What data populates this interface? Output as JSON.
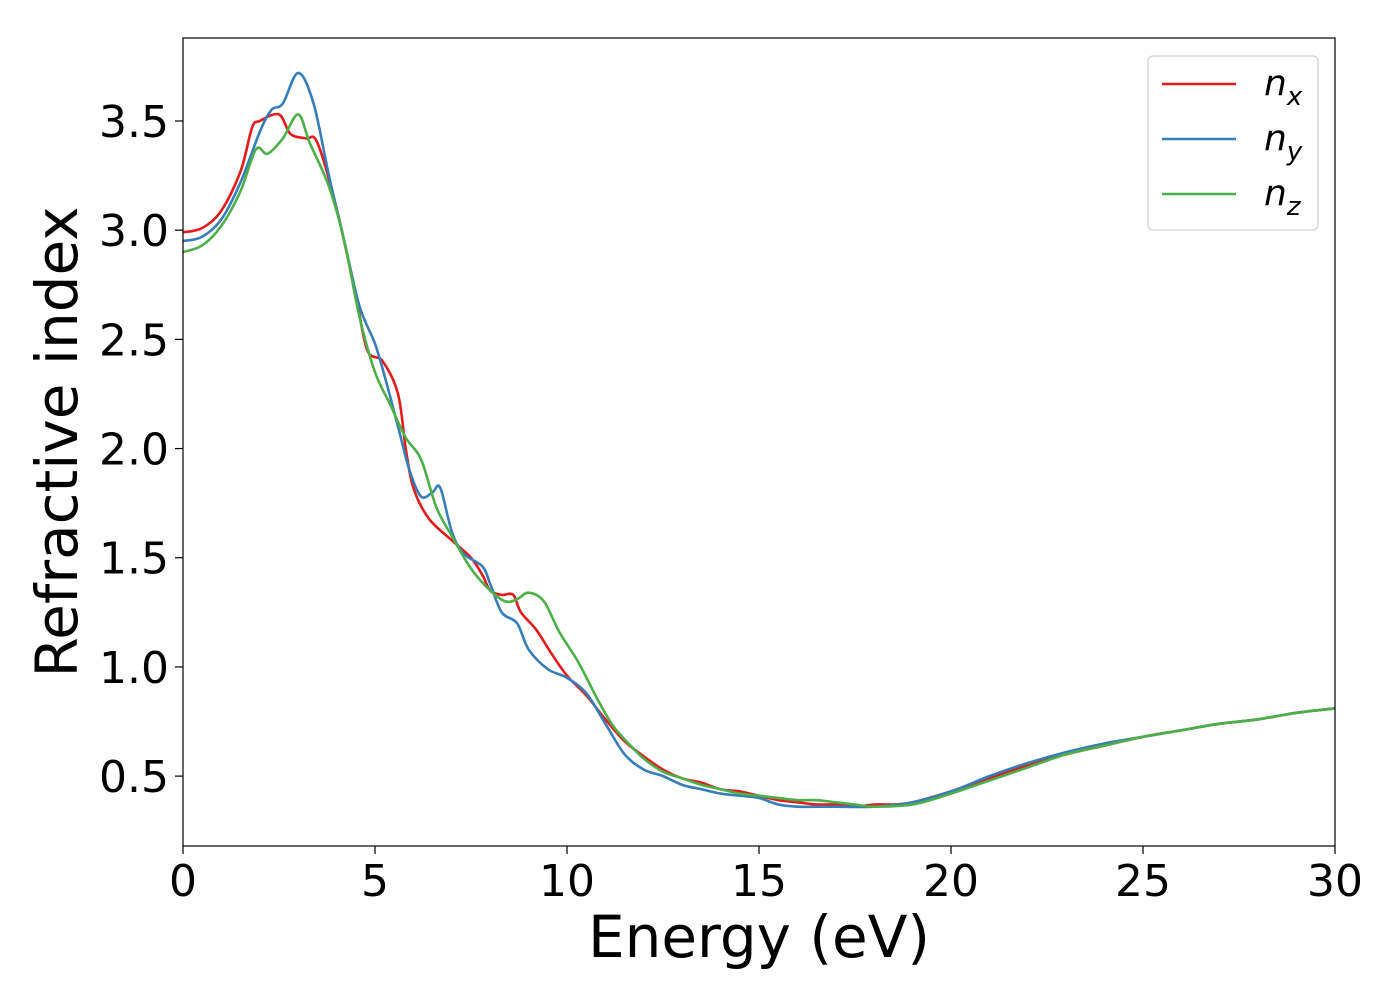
{
  "chart_data": {
    "type": "line",
    "title": "",
    "xlabel": "Energy (eV)",
    "ylabel": "Refractive index",
    "xlim": [
      0,
      30
    ],
    "ylim": [
      0.18,
      3.88
    ],
    "xticks": [
      0,
      5,
      10,
      15,
      20,
      25,
      30
    ],
    "yticks": [
      0.5,
      1.0,
      1.5,
      2.0,
      2.5,
      3.0,
      3.5
    ],
    "xtick_labels": [
      "0",
      "5",
      "10",
      "15",
      "20",
      "25",
      "30"
    ],
    "ytick_labels": [
      "0.5",
      "1.0",
      "1.5",
      "2.0",
      "2.5",
      "3.0",
      "3.5"
    ],
    "grid": false,
    "legend_position": "top-right",
    "series": [
      {
        "name": "n",
        "subscript": "x",
        "color": "#e41a1c",
        "points": [
          [
            0,
            2.99
          ],
          [
            0.5,
            3.01
          ],
          [
            1.0,
            3.09
          ],
          [
            1.5,
            3.27
          ],
          [
            1.8,
            3.47
          ],
          [
            2.0,
            3.5
          ],
          [
            2.5,
            3.53
          ],
          [
            2.8,
            3.44
          ],
          [
            3.2,
            3.42
          ],
          [
            3.5,
            3.4
          ],
          [
            4.0,
            3.1
          ],
          [
            4.5,
            2.7
          ],
          [
            4.8,
            2.45
          ],
          [
            5.2,
            2.4
          ],
          [
            5.6,
            2.25
          ],
          [
            5.8,
            2.0
          ],
          [
            6.0,
            1.82
          ],
          [
            6.4,
            1.68
          ],
          [
            7.0,
            1.58
          ],
          [
            7.5,
            1.5
          ],
          [
            7.8,
            1.42
          ],
          [
            8.0,
            1.35
          ],
          [
            8.3,
            1.33
          ],
          [
            8.6,
            1.33
          ],
          [
            8.8,
            1.25
          ],
          [
            9.2,
            1.17
          ],
          [
            9.6,
            1.06
          ],
          [
            10.0,
            0.96
          ],
          [
            10.5,
            0.87
          ],
          [
            11.0,
            0.76
          ],
          [
            11.5,
            0.66
          ],
          [
            12.0,
            0.59
          ],
          [
            12.5,
            0.53
          ],
          [
            13.0,
            0.49
          ],
          [
            13.5,
            0.47
          ],
          [
            14.0,
            0.44
          ],
          [
            14.5,
            0.43
          ],
          [
            15.0,
            0.41
          ],
          [
            15.5,
            0.39
          ],
          [
            16.0,
            0.38
          ],
          [
            16.5,
            0.37
          ],
          [
            17.0,
            0.37
          ],
          [
            17.5,
            0.36
          ],
          [
            18.0,
            0.37
          ],
          [
            18.5,
            0.37
          ],
          [
            19.0,
            0.38
          ],
          [
            20.0,
            0.43
          ],
          [
            21.0,
            0.49
          ],
          [
            22.0,
            0.55
          ],
          [
            23.0,
            0.6
          ],
          [
            24.0,
            0.64
          ],
          [
            25.0,
            0.68
          ],
          [
            26.0,
            0.71
          ],
          [
            27.0,
            0.74
          ],
          [
            28.0,
            0.76
          ],
          [
            29.0,
            0.79
          ],
          [
            30.0,
            0.81
          ]
        ]
      },
      {
        "name": "n",
        "subscript": "y",
        "color": "#377eb8",
        "points": [
          [
            0,
            2.95
          ],
          [
            0.5,
            2.97
          ],
          [
            1.0,
            3.05
          ],
          [
            1.5,
            3.22
          ],
          [
            2.0,
            3.45
          ],
          [
            2.3,
            3.55
          ],
          [
            2.6,
            3.58
          ],
          [
            3.0,
            3.72
          ],
          [
            3.4,
            3.58
          ],
          [
            3.8,
            3.25
          ],
          [
            4.2,
            2.95
          ],
          [
            4.6,
            2.65
          ],
          [
            5.0,
            2.48
          ],
          [
            5.3,
            2.3
          ],
          [
            5.6,
            2.1
          ],
          [
            5.9,
            1.9
          ],
          [
            6.2,
            1.78
          ],
          [
            6.5,
            1.8
          ],
          [
            6.7,
            1.82
          ],
          [
            7.0,
            1.62
          ],
          [
            7.3,
            1.52
          ],
          [
            7.8,
            1.46
          ],
          [
            8.0,
            1.38
          ],
          [
            8.3,
            1.25
          ],
          [
            8.7,
            1.2
          ],
          [
            9.0,
            1.08
          ],
          [
            9.5,
            0.99
          ],
          [
            10.0,
            0.95
          ],
          [
            10.5,
            0.88
          ],
          [
            11.0,
            0.74
          ],
          [
            11.5,
            0.6
          ],
          [
            12.0,
            0.53
          ],
          [
            12.5,
            0.5
          ],
          [
            13.0,
            0.46
          ],
          [
            13.5,
            0.44
          ],
          [
            14.0,
            0.42
          ],
          [
            14.5,
            0.41
          ],
          [
            15.0,
            0.4
          ],
          [
            15.5,
            0.37
          ],
          [
            16.0,
            0.36
          ],
          [
            16.5,
            0.36
          ],
          [
            17.0,
            0.36
          ],
          [
            18.0,
            0.36
          ],
          [
            19.0,
            0.38
          ],
          [
            20.0,
            0.43
          ],
          [
            21.0,
            0.5
          ],
          [
            22.0,
            0.56
          ],
          [
            23.0,
            0.61
          ],
          [
            24.0,
            0.65
          ],
          [
            25.0,
            0.68
          ],
          [
            26.0,
            0.71
          ],
          [
            27.0,
            0.74
          ],
          [
            28.0,
            0.76
          ],
          [
            29.0,
            0.79
          ],
          [
            30.0,
            0.81
          ]
        ]
      },
      {
        "name": "n",
        "subscript": "z",
        "color": "#4daf4a",
        "points": [
          [
            0,
            2.9
          ],
          [
            0.5,
            2.93
          ],
          [
            1.0,
            3.02
          ],
          [
            1.5,
            3.18
          ],
          [
            1.9,
            3.37
          ],
          [
            2.2,
            3.35
          ],
          [
            2.6,
            3.42
          ],
          [
            3.0,
            3.53
          ],
          [
            3.3,
            3.4
          ],
          [
            3.8,
            3.2
          ],
          [
            4.2,
            2.95
          ],
          [
            4.6,
            2.6
          ],
          [
            5.0,
            2.35
          ],
          [
            5.4,
            2.2
          ],
          [
            5.8,
            2.05
          ],
          [
            6.2,
            1.95
          ],
          [
            6.6,
            1.73
          ],
          [
            7.0,
            1.6
          ],
          [
            7.5,
            1.45
          ],
          [
            8.0,
            1.35
          ],
          [
            8.4,
            1.3
          ],
          [
            8.7,
            1.31
          ],
          [
            9.0,
            1.34
          ],
          [
            9.4,
            1.3
          ],
          [
            9.8,
            1.16
          ],
          [
            10.3,
            1.02
          ],
          [
            10.8,
            0.85
          ],
          [
            11.2,
            0.73
          ],
          [
            11.6,
            0.65
          ],
          [
            12.0,
            0.58
          ],
          [
            12.5,
            0.52
          ],
          [
            13.0,
            0.49
          ],
          [
            13.5,
            0.46
          ],
          [
            14.0,
            0.44
          ],
          [
            14.5,
            0.42
          ],
          [
            15.0,
            0.41
          ],
          [
            15.5,
            0.4
          ],
          [
            16.0,
            0.39
          ],
          [
            16.5,
            0.39
          ],
          [
            17.0,
            0.38
          ],
          [
            17.5,
            0.37
          ],
          [
            18.0,
            0.36
          ],
          [
            19.0,
            0.37
          ],
          [
            20.0,
            0.42
          ],
          [
            21.0,
            0.48
          ],
          [
            22.0,
            0.54
          ],
          [
            23.0,
            0.6
          ],
          [
            24.0,
            0.64
          ],
          [
            25.0,
            0.68
          ],
          [
            26.0,
            0.71
          ],
          [
            27.0,
            0.74
          ],
          [
            28.0,
            0.76
          ],
          [
            29.0,
            0.79
          ],
          [
            30.0,
            0.81
          ]
        ]
      }
    ]
  }
}
